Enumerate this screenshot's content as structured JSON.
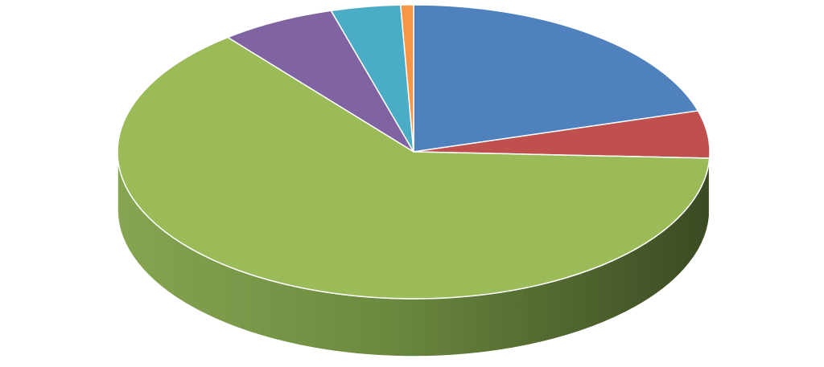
{
  "chart_data": {
    "type": "pie",
    "style": "3d-exploded-none",
    "title": "",
    "legend": "none",
    "slices": [
      {
        "value": 20.5,
        "color": "#4f81bd"
      },
      {
        "value": 5.2,
        "color": "#c0504d"
      },
      {
        "value": 63.5,
        "color": "#9bbb59"
      },
      {
        "value": 6.3,
        "color": "#8064a2"
      },
      {
        "value": 3.8,
        "color": "#4bacc6"
      },
      {
        "value": 0.7,
        "color": "#f79646"
      }
    ]
  }
}
